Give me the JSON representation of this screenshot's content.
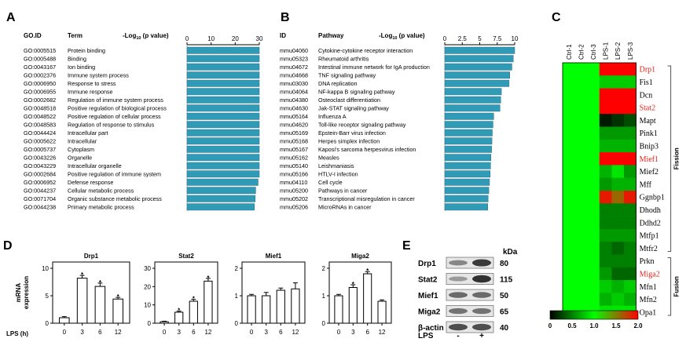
{
  "figure_labels": {
    "A": "A",
    "B": "B",
    "C": "C",
    "D": "D",
    "E": "E"
  },
  "colors": {
    "bar": "#2f9bb7",
    "bar_edge": "#2a6e84",
    "highlight": "#e2231a",
    "axis": "#000000"
  },
  "chart_data": [
    {
      "type": "bar",
      "orientation": "horizontal",
      "panel": "A",
      "headers": {
        "id": "GO.ID",
        "term": "Term",
        "axis_pre": "-Log",
        "axis_sub": "10",
        "axis_post": " (p value)"
      },
      "xlim": [
        0,
        30
      ],
      "ticks": [
        "0",
        "10",
        "20",
        "30"
      ],
      "categories": [
        "GO:0005515",
        "GO:0005488",
        "GO:0043167",
        "GO:0002376",
        "GO:0006950",
        "GO:0006955",
        "GO:0002682",
        "GO:0048518",
        "GO:0048522",
        "GO:0048583",
        "GO:0044424",
        "GO:0005622",
        "GO:0005737",
        "GO:0043226",
        "GO:0043229",
        "GO:0002684",
        "GO:0006952",
        "GO:0044237",
        "GO:0071704",
        "GO:0044238"
      ],
      "terms": [
        "Protein binding",
        "Binding",
        "Ion binding",
        "Immune system process",
        "Response to stress",
        "Immune response",
        "Regulation of immune system process",
        "Positive regulation of biological process",
        "Positive regulation of cellular process",
        "Regulation of response to stimulus",
        "Intracellular part",
        "Intracellular",
        "Cytoplasm",
        "Organelle",
        "Intracellular organelle",
        "Positive regulation of immune system",
        "Defense response",
        "Cellular metabolic process",
        "Organic substance metabolic process",
        "Primary metabolic process"
      ],
      "values": [
        30,
        30,
        30,
        30,
        30,
        30,
        30,
        30,
        30,
        30,
        30,
        30,
        30,
        30,
        30,
        30,
        29.5,
        28.5,
        28.3,
        28
      ]
    },
    {
      "type": "bar",
      "orientation": "horizontal",
      "panel": "B",
      "headers": {
        "id": "ID",
        "term": "Pathway",
        "axis_pre": "-Log",
        "axis_sub": "10",
        "axis_post": " (p value)"
      },
      "xlim": [
        0,
        10
      ],
      "ticks": [
        "0",
        "2.5",
        "5",
        "7.5",
        "10"
      ],
      "categories": [
        "mmu04060",
        "mmu05323",
        "mmu04672",
        "mmu04668",
        "mmu03030",
        "mmu04064",
        "mmu04380",
        "mmu04630",
        "mmu05164",
        "mmu04620",
        "mmu05169",
        "mmu05168",
        "mmu05167",
        "mmu05162",
        "mmu05140",
        "mmu05166",
        "mmu04110",
        "mmu05200",
        "mmu05202",
        "mmu05206"
      ],
      "terms": [
        "Cytokine-cytokine receptor interaction",
        "Rheumatoid arthritis",
        "Intestinal immune network for IgA production",
        "TNF signaling pathway",
        "DNA replication",
        "NF-kappa B signaling pathway",
        "Osteoclast differentiation",
        "Jak-STAT signaling pathway",
        "Influenza A",
        "Toll-like receptor signaling pathway",
        "Epstein-Barr virus infection",
        "Herpes simplex infection",
        "Kaposi's sarcoma herpesvirus infection",
        "Measles",
        "Leishmaniasis",
        "HTLV-I infection",
        "Cell cycle",
        "Pathways in cancer",
        "Transcriptional misregulation in cancer",
        "MicroRNAs in cancer"
      ],
      "values": [
        10,
        9.8,
        9.6,
        9.3,
        9.2,
        8.1,
        8.0,
        7.9,
        7.0,
        6.9,
        6.8,
        6.75,
        6.7,
        6.6,
        6.55,
        6.5,
        6.4,
        6.3,
        6.2,
        6.15
      ]
    },
    {
      "type": "heatmap",
      "panel": "C",
      "columns": [
        "Ctrl-1",
        "Ctrl-2",
        "Ctrl-3",
        "LPS-1",
        "LPS-2",
        "LPS-3"
      ],
      "rows": [
        "Drp1",
        "Fis1",
        "Dcn",
        "Stat2",
        "Mapt",
        "Pink1",
        "Bnip3",
        "Mief1",
        "Mief2",
        "Mff",
        "Ggnbp1",
        "Dhodh",
        "Ddhd2",
        "Mtfp1",
        "Mtfr2",
        "Prkn",
        "Miga2",
        "Mfn1",
        "Mfn2",
        "Opa1"
      ],
      "highlighted_rows": [
        "Drp1",
        "Stat2",
        "Mief1",
        "Miga2"
      ],
      "values": [
        [
          1.0,
          1.0,
          1.0,
          2.0,
          2.0,
          2.0
        ],
        [
          1.0,
          1.0,
          1.0,
          0.8,
          0.8,
          0.8
        ],
        [
          1.0,
          1.0,
          1.0,
          2.0,
          2.0,
          2.0
        ],
        [
          1.0,
          1.0,
          1.0,
          2.0,
          2.0,
          2.0
        ],
        [
          1.0,
          1.0,
          1.0,
          0.1,
          0.2,
          0.3
        ],
        [
          1.0,
          1.0,
          1.0,
          0.6,
          0.6,
          0.6
        ],
        [
          1.0,
          1.0,
          1.0,
          0.7,
          0.7,
          0.7
        ],
        [
          1.0,
          1.0,
          1.0,
          2.0,
          2.0,
          2.0
        ],
        [
          1.0,
          1.0,
          1.0,
          0.7,
          0.9,
          0.6
        ],
        [
          1.0,
          1.0,
          1.0,
          0.6,
          0.7,
          0.7
        ],
        [
          1.0,
          1.0,
          1.0,
          1.9,
          1.6,
          1.9
        ],
        [
          1.0,
          1.0,
          1.0,
          0.5,
          0.5,
          0.5
        ],
        [
          1.0,
          1.0,
          1.0,
          0.5,
          0.5,
          0.5
        ],
        [
          1.0,
          1.0,
          1.0,
          0.6,
          0.6,
          0.6
        ],
        [
          1.0,
          1.0,
          1.0,
          0.5,
          0.4,
          0.5
        ],
        [
          1.0,
          1.0,
          1.0,
          0.5,
          0.5,
          0.5
        ],
        [
          1.0,
          1.0,
          1.0,
          0.6,
          0.4,
          0.4
        ],
        [
          1.0,
          1.0,
          1.0,
          0.8,
          0.7,
          0.8
        ],
        [
          1.0,
          1.0,
          1.0,
          0.7,
          0.8,
          0.7
        ],
        [
          1.0,
          1.0,
          1.0,
          0.9,
          0.9,
          0.9
        ]
      ],
      "groups": [
        {
          "name": "Fission",
          "rows": [
            "Drp1",
            "Mtfr2"
          ]
        },
        {
          "name": "Fusion",
          "rows": [
            "Prkn",
            "Opa1"
          ]
        }
      ],
      "scale": {
        "range": [
          0,
          2.0
        ],
        "ticks": [
          "0",
          "0.5",
          "1.0",
          "1.5",
          "2.0"
        ],
        "colors": [
          "#000000",
          "#00ff00",
          "#ff0000"
        ]
      }
    },
    {
      "type": "bar",
      "panel": "D",
      "ylabel": "mRNA expression",
      "xlabel": "LPS (h)",
      "categories": [
        "0",
        "3",
        "6",
        "12"
      ],
      "subplots": [
        {
          "title": "Drp1",
          "ylim": [
            0,
            10
          ],
          "yticks": [
            "0",
            "5",
            "10"
          ],
          "tick_values": [
            0,
            5,
            10
          ],
          "values": [
            1.0,
            8.2,
            6.7,
            4.4
          ],
          "errors": [
            0.2,
            0.5,
            0.6,
            0.3
          ],
          "significant": [
            false,
            true,
            true,
            true
          ]
        },
        {
          "title": "Stat2",
          "ylim": [
            0,
            30
          ],
          "yticks": [
            "0",
            "10",
            "20",
            "30"
          ],
          "tick_values": [
            0,
            10,
            20,
            30
          ],
          "values": [
            0.8,
            6.0,
            12.0,
            23.0
          ],
          "errors": [
            0.3,
            0.6,
            1.0,
            1.5
          ],
          "significant": [
            false,
            true,
            true,
            true
          ]
        },
        {
          "title": "Mief1",
          "ylim": [
            0,
            2
          ],
          "yticks": [
            "0",
            "1",
            "2"
          ],
          "tick_values": [
            0,
            1,
            2
          ],
          "values": [
            1.0,
            1.0,
            1.2,
            1.25
          ],
          "errors": [
            0.05,
            0.12,
            0.08,
            0.22
          ],
          "significant": [
            false,
            false,
            false,
            false
          ]
        },
        {
          "title": "Miga2",
          "ylim": [
            0,
            2
          ],
          "yticks": [
            "0",
            "1",
            "2"
          ],
          "tick_values": [
            0,
            1,
            2
          ],
          "values": [
            1.0,
            1.3,
            1.8,
            0.8
          ],
          "errors": [
            0.05,
            0.1,
            0.08,
            0.05
          ],
          "significant": [
            false,
            true,
            true,
            false
          ]
        }
      ],
      "significance_mark": "*"
    }
  ],
  "blot": {
    "panel": "E",
    "unit": "kDa",
    "rows": [
      {
        "label": "Drp1",
        "kda": "80",
        "intensity": [
          0.45,
          0.85
        ]
      },
      {
        "label": "Stat2",
        "kda": "115",
        "intensity": [
          0.35,
          0.9
        ]
      },
      {
        "label": "Mief1",
        "kda": "50",
        "intensity": [
          0.6,
          0.6
        ]
      },
      {
        "label": "Miga2",
        "kda": "65",
        "intensity": [
          0.55,
          0.55
        ]
      },
      {
        "label": "β-actin",
        "kda": "40",
        "intensity": [
          0.75,
          0.75
        ]
      }
    ],
    "lane_label": "LPS",
    "lanes": [
      "-",
      "+"
    ]
  }
}
